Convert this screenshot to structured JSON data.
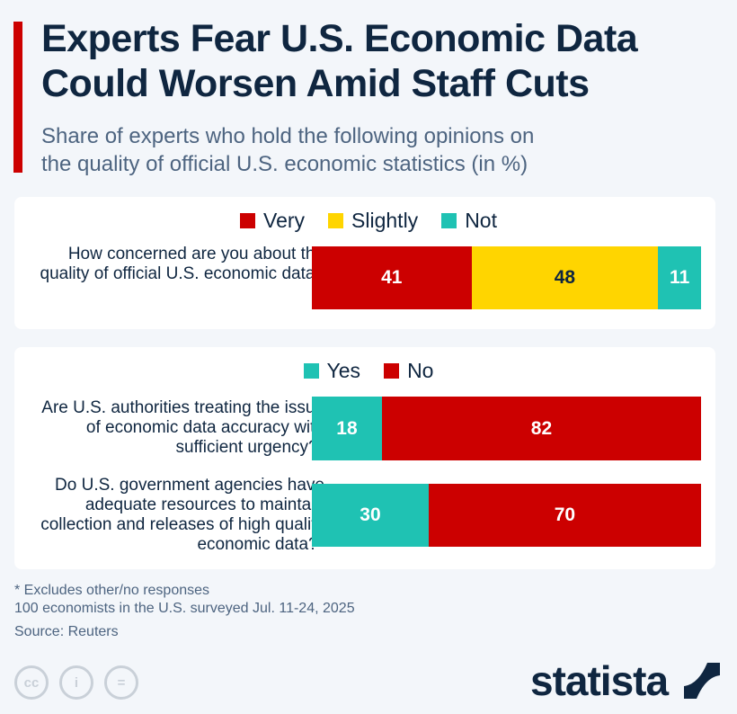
{
  "title_line1": "Experts Fear U.S. Economic Data",
  "title_line2": "Could Worsen Amid Staff Cuts",
  "subtitle_line1": "Share of experts who hold the following opinions on",
  "subtitle_line2": "the quality of official U.S. economic statistics (in %)",
  "colors": {
    "red": "#cc0000",
    "yellow": "#ffd500",
    "teal": "#1fc2b3"
  },
  "chart_data": [
    {
      "type": "bar",
      "stacked": true,
      "orientation": "horizontal",
      "legend": [
        "Very",
        "Slightly",
        "Not"
      ],
      "categories": [
        "How concerned are you about the quality of official U.S. economic data?"
      ],
      "series": [
        {
          "name": "Very",
          "values": [
            41
          ]
        },
        {
          "name": "Slightly",
          "values": [
            48
          ]
        },
        {
          "name": "Not",
          "values": [
            11
          ]
        }
      ]
    },
    {
      "type": "bar",
      "stacked": true,
      "orientation": "horizontal",
      "legend": [
        "Yes",
        "No"
      ],
      "categories": [
        "Are U.S. authorities treating the issue of economic data accuracy with sufficient urgency?*",
        "Do U.S. government agencies have adequate resources to maintain collection and releases of high quality economic data?*"
      ],
      "series": [
        {
          "name": "Yes",
          "values": [
            18,
            30
          ]
        },
        {
          "name": "No",
          "values": [
            82,
            70
          ]
        }
      ]
    }
  ],
  "footnote": "* Excludes other/no responses",
  "survey": "100 economists in the U.S. surveyed Jul. 11-24, 2025",
  "source": "Source: Reuters",
  "license_icons": [
    "cc",
    "by",
    "nd"
  ],
  "logo": "statista"
}
